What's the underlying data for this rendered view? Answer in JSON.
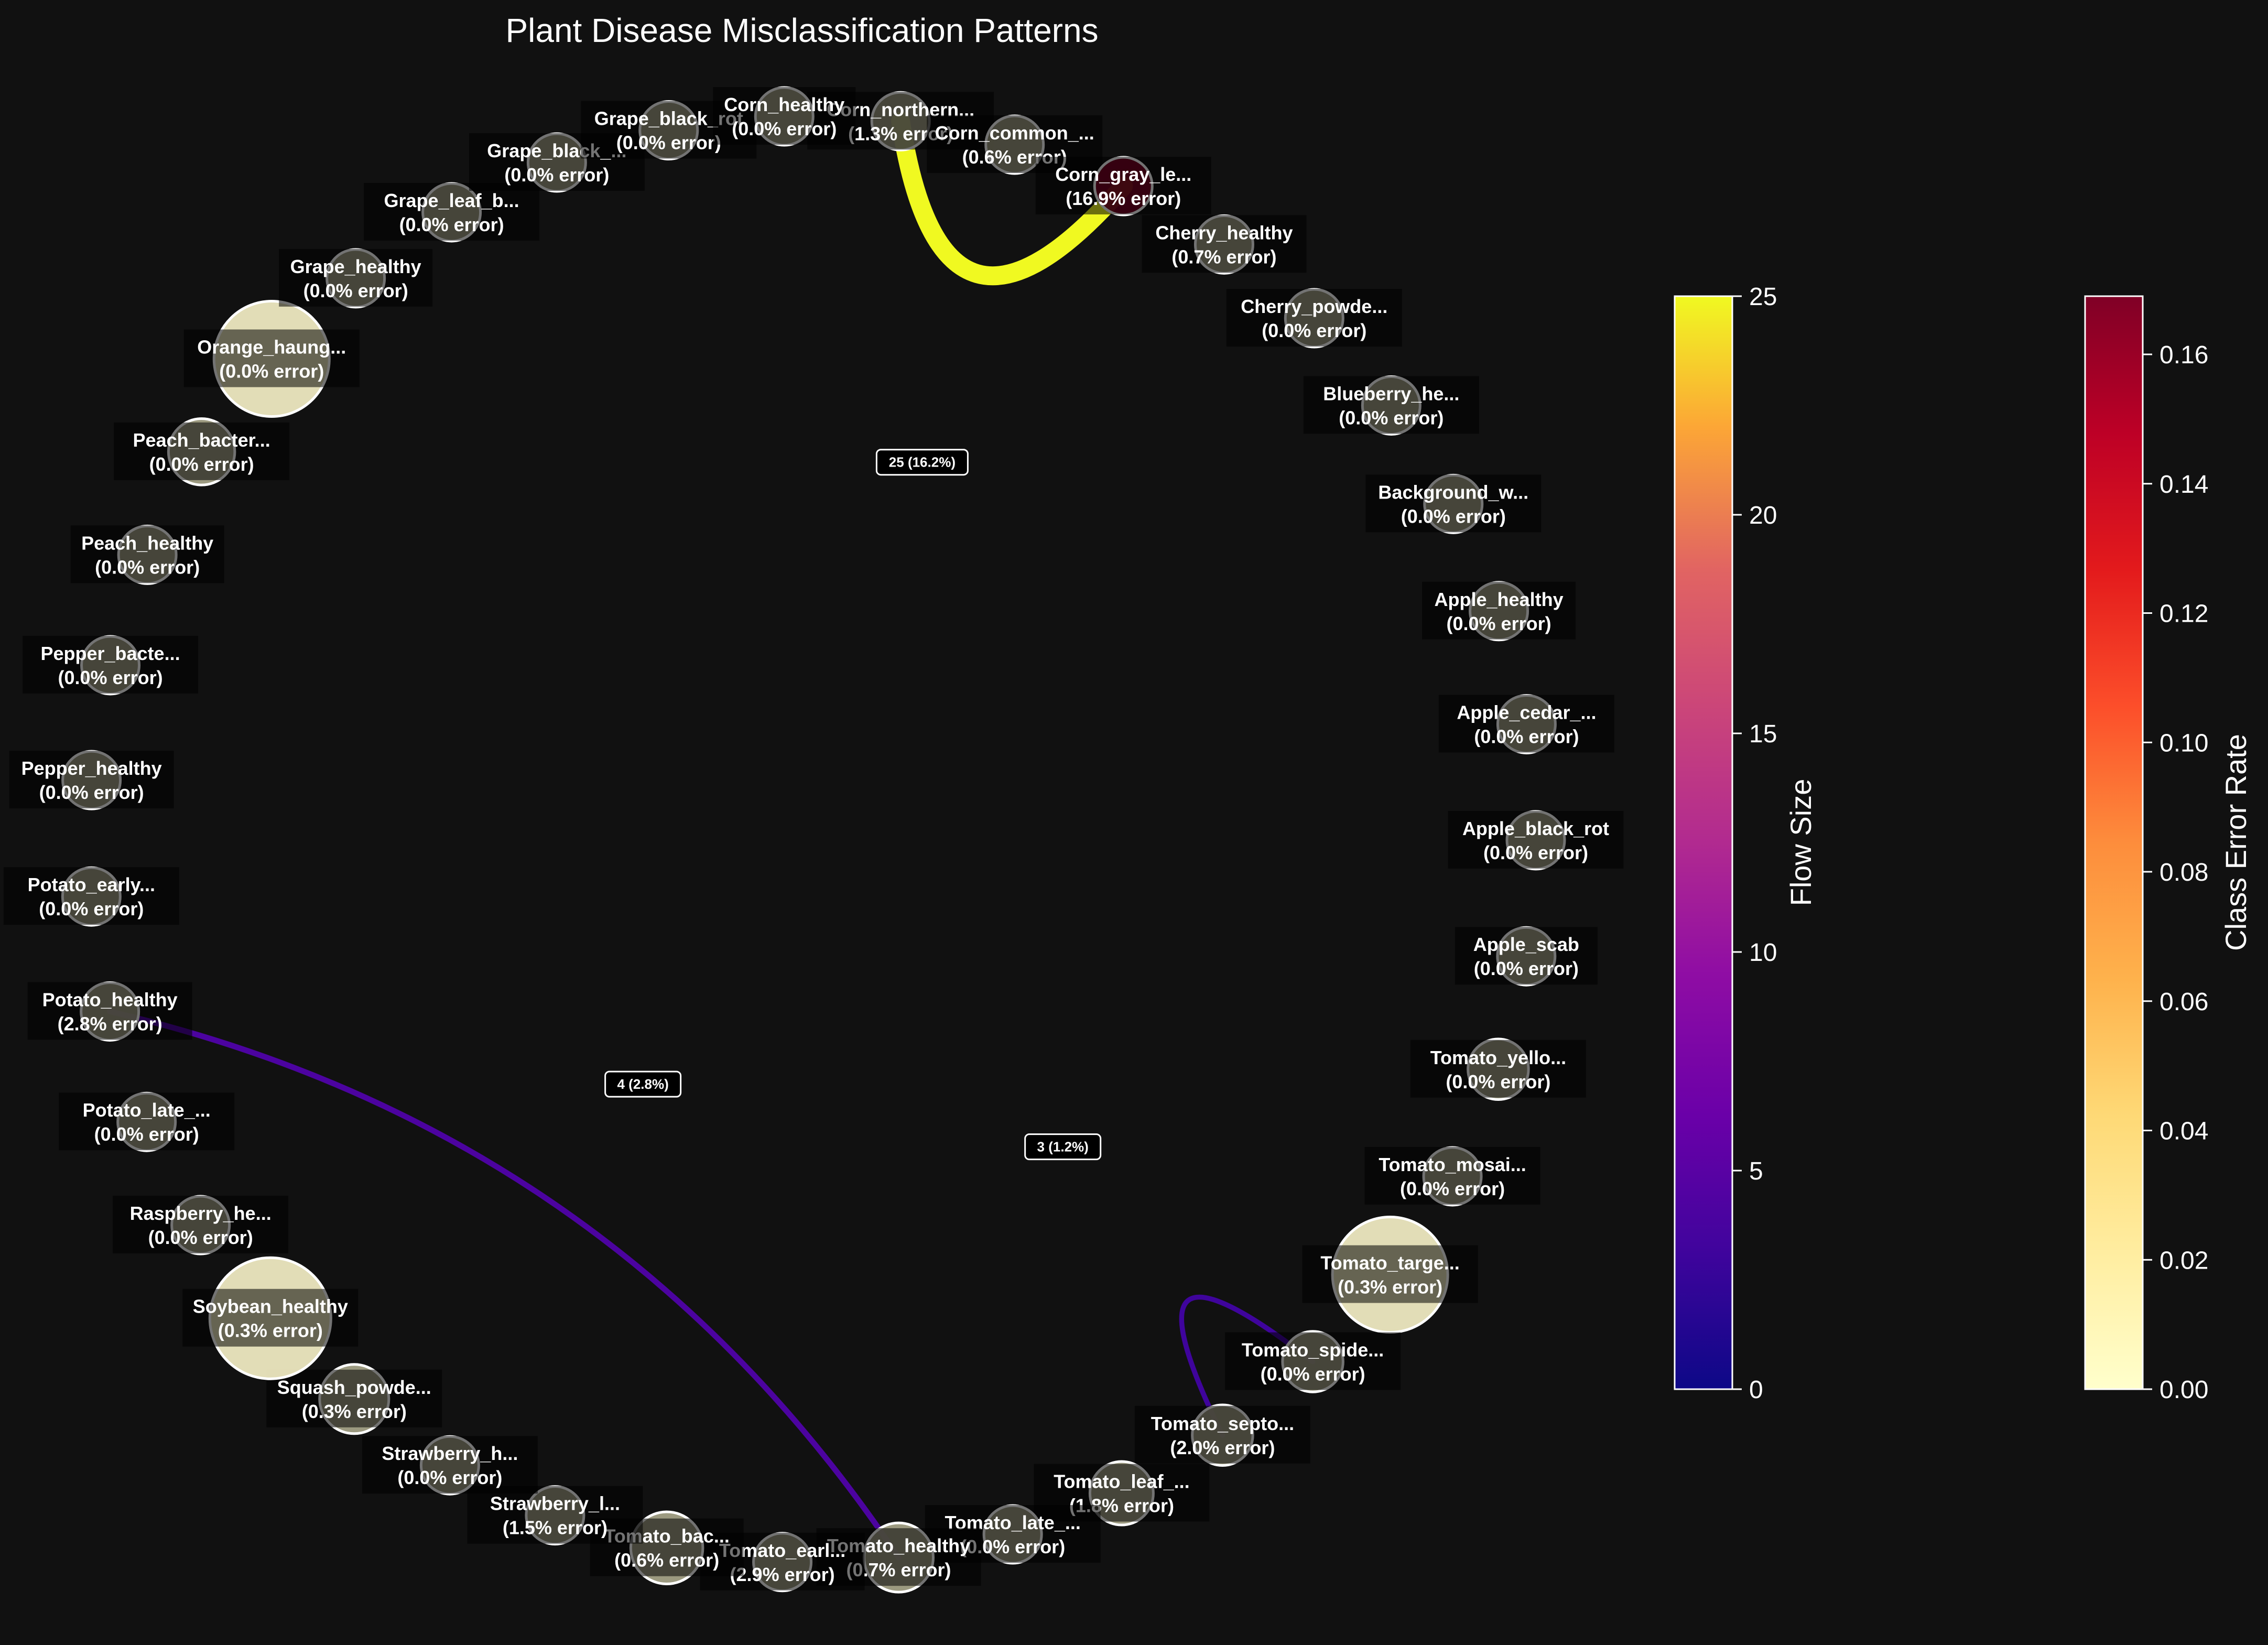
{
  "chart_data": {
    "type": "network",
    "title": "Plant Disease Misclassification Patterns",
    "nodes": [
      {
        "label": "Corn_northern...",
        "error": "(1.3% error)",
        "error_rate": 0.013,
        "size": 1.0
      },
      {
        "label": "Corn_common_...",
        "error": "(0.6% error)",
        "error_rate": 0.006,
        "size": 1.0
      },
      {
        "label": "Corn_gray_le...",
        "error": "(16.9% error)",
        "error_rate": 0.169,
        "size": 1.0
      },
      {
        "label": "Cherry_healthy",
        "error": "(0.7% error)",
        "error_rate": 0.007,
        "size": 1.0
      },
      {
        "label": "Cherry_powde...",
        "error": "(0.0% error)",
        "error_rate": 0.0,
        "size": 1.0
      },
      {
        "label": "Blueberry_he...",
        "error": "(0.0% error)",
        "error_rate": 0.0,
        "size": 1.0
      },
      {
        "label": "Background_w...",
        "error": "(0.0% error)",
        "error_rate": 0.0,
        "size": 1.0
      },
      {
        "label": "Apple_healthy",
        "error": "(0.0% error)",
        "error_rate": 0.0,
        "size": 1.0
      },
      {
        "label": "Apple_cedar_...",
        "error": "(0.0% error)",
        "error_rate": 0.0,
        "size": 1.0
      },
      {
        "label": "Apple_black_rot",
        "error": "(0.0% error)",
        "error_rate": 0.0,
        "size": 1.0
      },
      {
        "label": "Apple_scab",
        "error": "(0.0% error)",
        "error_rate": 0.0,
        "size": 1.0
      },
      {
        "label": "Tomato_yello...",
        "error": "(0.0% error)",
        "error_rate": 0.0,
        "size": 1.05
      },
      {
        "label": "Tomato_mosai...",
        "error": "(0.0% error)",
        "error_rate": 0.0,
        "size": 1.0
      },
      {
        "label": "Tomato_targe...",
        "error": "(0.3% error)",
        "error_rate": 0.003,
        "size": 2.0
      },
      {
        "label": "Tomato_spide...",
        "error": "(0.0% error)",
        "error_rate": 0.0,
        "size": 1.05
      },
      {
        "label": "Tomato_septo...",
        "error": "(2.0% error)",
        "error_rate": 0.02,
        "size": 1.05
      },
      {
        "label": "Tomato_leaf_...",
        "error": "(1.8% error)",
        "error_rate": 0.018,
        "size": 1.1
      },
      {
        "label": "Tomato_late_...",
        "error": "(0.0% error)",
        "error_rate": 0.0,
        "size": 1.0
      },
      {
        "label": "Tomato_healthy",
        "error": "(0.7% error)",
        "error_rate": 0.007,
        "size": 1.2
      },
      {
        "label": "Tomato_earl...",
        "error": "(2.9% error)",
        "error_rate": 0.029,
        "size": 1.0
      },
      {
        "label": "Tomato_bac...",
        "error": "(0.6% error)",
        "error_rate": 0.006,
        "size": 1.25
      },
      {
        "label": "Strawberry_l...",
        "error": "(1.5% error)",
        "error_rate": 0.015,
        "size": 1.0
      },
      {
        "label": "Strawberry_h...",
        "error": "(0.0% error)",
        "error_rate": 0.0,
        "size": 1.0
      },
      {
        "label": "Squash_powde...",
        "error": "(0.3% error)",
        "error_rate": 0.003,
        "size": 1.2
      },
      {
        "label": "Soybean_healthy",
        "error": "(0.3% error)",
        "error_rate": 0.003,
        "size": 2.1
      },
      {
        "label": "Raspberry_he...",
        "error": "(0.0% error)",
        "error_rate": 0.0,
        "size": 1.0
      },
      {
        "label": "Potato_late_...",
        "error": "(0.0% error)",
        "error_rate": 0.0,
        "size": 1.0
      },
      {
        "label": "Potato_healthy",
        "error": "(2.8% error)",
        "error_rate": 0.028,
        "size": 1.0
      },
      {
        "label": "Potato_early...",
        "error": "(0.0% error)",
        "error_rate": 0.0,
        "size": 1.0
      },
      {
        "label": "Pepper_healthy",
        "error": "(0.0% error)",
        "error_rate": 0.0,
        "size": 1.0
      },
      {
        "label": "Pepper_bacte...",
        "error": "(0.0% error)",
        "error_rate": 0.0,
        "size": 1.0
      },
      {
        "label": "Peach_healthy",
        "error": "(0.0% error)",
        "error_rate": 0.0,
        "size": 1.0
      },
      {
        "label": "Peach_bacter...",
        "error": "(0.0% error)",
        "error_rate": 0.0,
        "size": 1.15
      },
      {
        "label": "Orange_haung...",
        "error": "(0.0% error)",
        "error_rate": 0.0,
        "size": 2.0
      },
      {
        "label": "Grape_healthy",
        "error": "(0.0% error)",
        "error_rate": 0.0,
        "size": 1.0
      },
      {
        "label": "Grape_leaf_b...",
        "error": "(0.0% error)",
        "error_rate": 0.0,
        "size": 1.0
      },
      {
        "label": "Grape_black_...",
        "error": "(0.0% error)",
        "error_rate": 0.0,
        "size": 1.0
      },
      {
        "label": "Grape_black_rot",
        "error": "(0.0% error)",
        "error_rate": 0.0,
        "size": 1.0
      },
      {
        "label": "Corn_healthy",
        "error": "(0.0% error)",
        "error_rate": 0.0,
        "size": 1.0
      }
    ],
    "flows": [
      {
        "source": 2,
        "target": 0,
        "value": 25,
        "label": "25 (16.2%)"
      },
      {
        "source": 27,
        "target": 18,
        "value": 4,
        "label": "4 (2.8%)"
      },
      {
        "source": 15,
        "target": 14,
        "value": 3,
        "label": "3 (1.2%)"
      }
    ],
    "colorbars": [
      {
        "title": "Flow Size",
        "range": [
          0,
          25
        ],
        "ticks": [
          "0",
          "5",
          "10",
          "15",
          "20",
          "25"
        ],
        "colormap": "plasma"
      },
      {
        "title": "Class Error Rate",
        "range": [
          0,
          0.169
        ],
        "ticks": [
          "0.00",
          "0.02",
          "0.04",
          "0.06",
          "0.08",
          "0.10",
          "0.12",
          "0.14",
          "0.16"
        ],
        "colormap": "YlOrRd"
      }
    ]
  }
}
